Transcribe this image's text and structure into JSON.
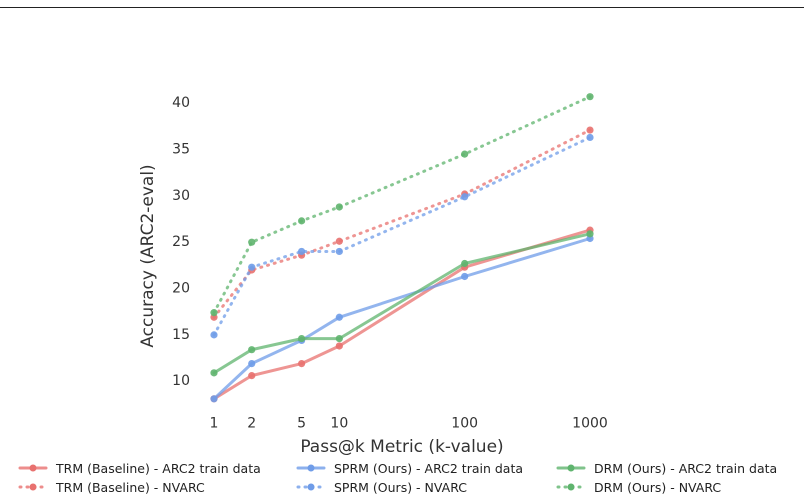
{
  "chart_data": {
    "type": "line",
    "title": "",
    "xlabel": "Pass@k Metric (k-value)",
    "ylabel": "Accuracy (ARC2-eval)",
    "x": [
      1,
      2,
      5,
      10,
      100,
      1000
    ],
    "x_tick_labels": [
      "1",
      "2",
      "5",
      "10",
      "100",
      "1000"
    ],
    "x_scale": "log",
    "y_ticks": [
      10,
      15,
      20,
      25,
      30,
      35,
      40
    ],
    "ylim": [
      7,
      42.5
    ],
    "grid": false,
    "legend_position": "bottom",
    "series": [
      {
        "name": "TRM (Baseline) - ARC2 train data",
        "color": "#e8716f",
        "style": "solid",
        "values": [
          8.1,
          10.6,
          11.9,
          13.8,
          22.3,
          26.3
        ]
      },
      {
        "name": "SPRM (Ours) - ARC2 train data",
        "color": "#6f9ce8",
        "style": "solid",
        "values": [
          8.1,
          11.9,
          14.4,
          16.9,
          21.3,
          25.4
        ]
      },
      {
        "name": "DRM (Ours) - ARC2 train data",
        "color": "#5fb46e",
        "style": "solid",
        "values": [
          10.9,
          13.4,
          14.6,
          14.6,
          22.7,
          25.9
        ]
      },
      {
        "name": "TRM (Baseline) - NVARC",
        "color": "#e8716f",
        "style": "dotted",
        "values": [
          16.9,
          22.0,
          23.6,
          25.1,
          30.2,
          37.1
        ]
      },
      {
        "name": "SPRM (Ours) - NVARC",
        "color": "#6f9ce8",
        "style": "dotted",
        "values": [
          15.0,
          22.3,
          24.0,
          24.0,
          29.9,
          36.3
        ]
      },
      {
        "name": "DRM (Ours) - NVARC",
        "color": "#5fb46e",
        "style": "dotted",
        "values": [
          17.4,
          25.0,
          27.3,
          28.8,
          34.5,
          40.7
        ]
      }
    ]
  }
}
